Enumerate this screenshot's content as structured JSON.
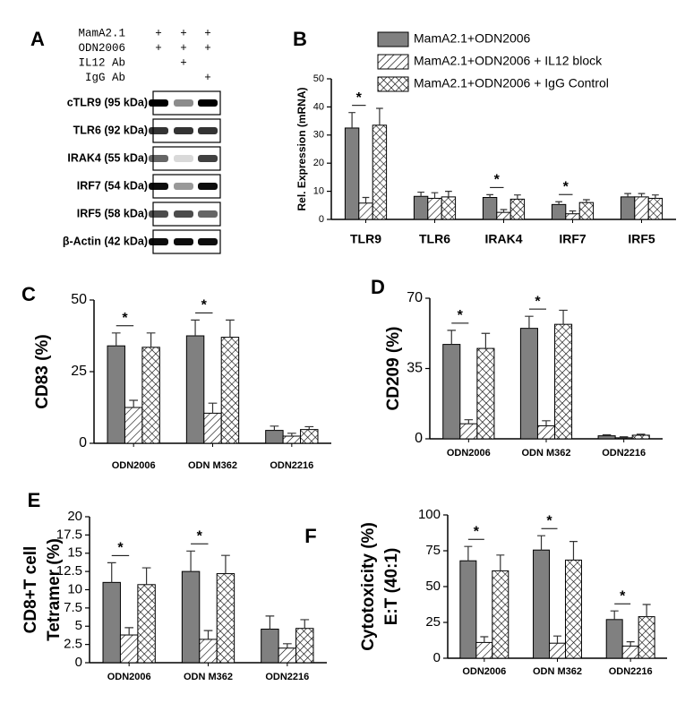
{
  "blot": {
    "panel": "A",
    "conditions": [
      {
        "name": "MamA2.1",
        "marks": [
          "+",
          "+",
          "+"
        ]
      },
      {
        "name": "ODN2006",
        "marks": [
          "+",
          "+",
          "+"
        ]
      },
      {
        "name": "IL12 Ab",
        "marks": [
          null,
          "+",
          null
        ]
      },
      {
        "name": "IgG Ab",
        "marks": [
          null,
          null,
          "+"
        ]
      }
    ],
    "bands": [
      "cTLR9 (95 kDa)",
      "TLR6 (92 kDa)",
      "IRAK4 (55 kDa)",
      "IRF7 (54 kDa)",
      "IRF5 (58 kDa)",
      "β-Actin (42 kDa)"
    ]
  },
  "chart_data": [
    {
      "type": "bar",
      "panel": "B",
      "ylabel": [
        "Rel. Expression (mRNA)"
      ],
      "legend": true,
      "categories": [
        "TLR9",
        "TLR6",
        "IRAK4",
        "IRF7",
        "IRF5"
      ],
      "ylim": [
        0,
        50
      ],
      "yticks": [
        0,
        10,
        20,
        30,
        40,
        50
      ],
      "series": [
        {
          "name": "MamA2.1+ODN2006",
          "color": "#808080",
          "pattern": "solid",
          "values": [
            32.5,
            8.2,
            7.8,
            5.3,
            8
          ],
          "errors": [
            5.5,
            1.5,
            1,
            1,
            1.2
          ]
        },
        {
          "name": "MamA2.1+ODN2006 + IL12 block",
          "color": "#ffffff",
          "pattern": "hatch",
          "values": [
            5.8,
            7.5,
            2.5,
            2,
            8
          ],
          "errors": [
            2,
            2,
            1,
            1,
            1.2
          ]
        },
        {
          "name": "MamA2.1+ODN2006 + IgG Control",
          "color": "#ffffff",
          "pattern": "crosshatch",
          "values": [
            33.5,
            8,
            7.2,
            6,
            7.5
          ],
          "errors": [
            6,
            2,
            1.5,
            1,
            1.2
          ]
        }
      ],
      "annotations": [
        {
          "category": "TLR9",
          "text": "*"
        },
        {
          "category": "IRAK4",
          "text": "*"
        },
        {
          "category": "IRF7",
          "text": "*"
        }
      ]
    },
    {
      "type": "bar",
      "panel": "C",
      "ylabel": [
        "CD83 (%)"
      ],
      "legend": false,
      "categories": [
        "ODN2006",
        "ODN M362",
        "ODN2216"
      ],
      "ylim": [
        0,
        50
      ],
      "yticks": [
        0,
        25,
        50
      ],
      "series": [
        {
          "name": "MamA2.1+ODN2006",
          "color": "#808080",
          "pattern": "solid",
          "values": [
            34,
            37.5,
            4.5
          ],
          "errors": [
            4.5,
            5.5,
            1.5
          ]
        },
        {
          "name": "MamA2.1+ODN2006 + IL12 block",
          "color": "#ffffff",
          "pattern": "hatch",
          "values": [
            12.5,
            10.5,
            2.5
          ],
          "errors": [
            2.5,
            3.5,
            1
          ]
        },
        {
          "name": "MamA2.1+ODN2006 + IgG Control",
          "color": "#ffffff",
          "pattern": "crosshatch",
          "values": [
            33.5,
            37,
            4.8
          ],
          "errors": [
            5,
            6,
            1
          ]
        }
      ],
      "annotations": [
        {
          "category": "ODN2006",
          "text": "*"
        },
        {
          "category": "ODN M362",
          "text": "*"
        }
      ]
    },
    {
      "type": "bar",
      "panel": "D",
      "ylabel": [
        "CD209 (%)"
      ],
      "legend": false,
      "categories": [
        "ODN2006",
        "ODN M362",
        "ODN2216"
      ],
      "ylim": [
        0,
        70
      ],
      "yticks": [
        0,
        35,
        70
      ],
      "series": [
        {
          "name": "MamA2.1+ODN2006",
          "color": "#808080",
          "pattern": "solid",
          "values": [
            47,
            55,
            1.5
          ],
          "errors": [
            7,
            6,
            0.5
          ]
        },
        {
          "name": "MamA2.1+ODN2006 + IL12 block",
          "color": "#ffffff",
          "pattern": "hatch",
          "values": [
            7.5,
            6.5,
            0.5
          ],
          "errors": [
            2,
            2.5,
            0.5
          ]
        },
        {
          "name": "MamA2.1+ODN2006 + IgG Control",
          "color": "#ffffff",
          "pattern": "crosshatch",
          "values": [
            45,
            57,
            1.8
          ],
          "errors": [
            7.5,
            7,
            0.5
          ]
        }
      ],
      "annotations": [
        {
          "category": "ODN2006",
          "text": "*"
        },
        {
          "category": "ODN M362",
          "text": "*"
        }
      ]
    },
    {
      "type": "bar",
      "panel": "E",
      "ylabel": [
        "CD8+T cell",
        "Tetramer (%)"
      ],
      "legend": false,
      "categories": [
        "ODN2006",
        "ODN M362",
        "ODN2216"
      ],
      "ylim": [
        0,
        20
      ],
      "yticks": [
        0,
        2.5,
        5,
        7.5,
        10,
        12.5,
        15,
        17.5,
        20
      ],
      "series": [
        {
          "name": "MamA2.1+ODN2006",
          "color": "#808080",
          "pattern": "solid",
          "values": [
            11,
            12.5,
            4.6
          ],
          "errors": [
            2.7,
            2.8,
            1.8
          ]
        },
        {
          "name": "MamA2.1+ODN2006 + IL12 block",
          "color": "#ffffff",
          "pattern": "hatch",
          "values": [
            3.8,
            3.2,
            2
          ],
          "errors": [
            1,
            1.2,
            0.6
          ]
        },
        {
          "name": "MamA2.1+ODN2006 + IgG Control",
          "color": "#ffffff",
          "pattern": "crosshatch",
          "values": [
            10.7,
            12.2,
            4.7
          ],
          "errors": [
            2.3,
            2.5,
            1.2
          ]
        }
      ],
      "annotations": [
        {
          "category": "ODN2006",
          "text": "*"
        },
        {
          "category": "ODN M362",
          "text": "*"
        }
      ]
    },
    {
      "type": "bar",
      "panel": "F",
      "ylabel": [
        "Cytotoxicity (%)",
        "E:T (40:1)"
      ],
      "legend": false,
      "categories": [
        "ODN2006",
        "ODN M362",
        "ODN2216"
      ],
      "ylim": [
        0,
        100
      ],
      "yticks": [
        0,
        25,
        50,
        75,
        100
      ],
      "series": [
        {
          "name": "MamA2.1+ODN2006",
          "color": "#808080",
          "pattern": "solid",
          "values": [
            68,
            75.5,
            27
          ],
          "errors": [
            10,
            10,
            6
          ]
        },
        {
          "name": "MamA2.1+ODN2006 + IL12 block",
          "color": "#ffffff",
          "pattern": "hatch",
          "values": [
            11,
            10.5,
            8.5
          ],
          "errors": [
            4,
            5,
            3
          ]
        },
        {
          "name": "MamA2.1+ODN2006 + IgG Control",
          "color": "#ffffff",
          "pattern": "crosshatch",
          "values": [
            61,
            68.5,
            29
          ],
          "errors": [
            11,
            13,
            8.5
          ]
        }
      ],
      "annotations": [
        {
          "category": "ODN2006",
          "text": "*"
        },
        {
          "category": "ODN M362",
          "text": "*"
        },
        {
          "category": "ODN2216",
          "text": "*"
        }
      ]
    }
  ]
}
